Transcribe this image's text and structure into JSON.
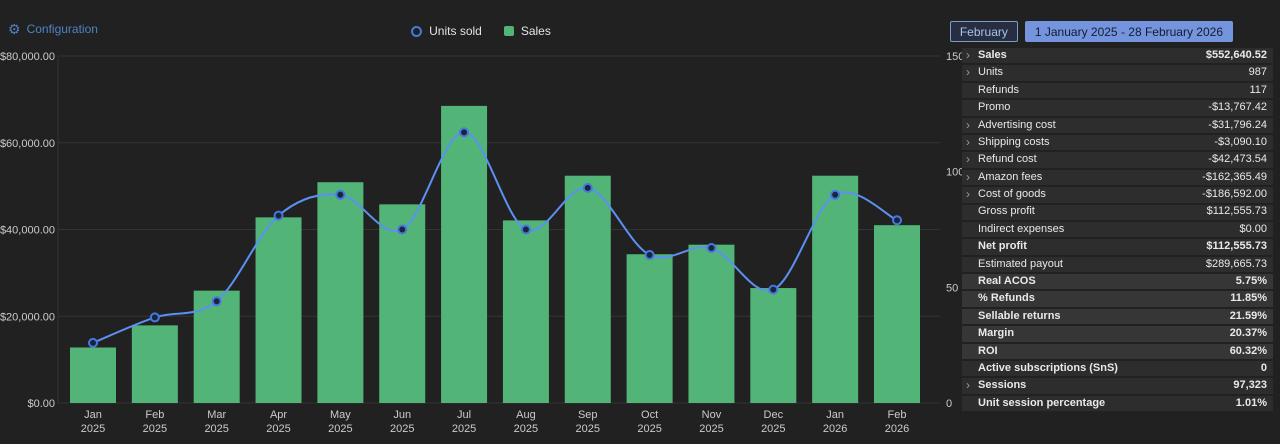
{
  "top_bar": {
    "configuration_label": "Configuration",
    "month_button": "February",
    "date_range_button": "1 January 2025 - 28 February 2026"
  },
  "colors": {
    "bar_green": "#52b477",
    "line_blue": "#5b91f2",
    "marker_ring_blue": "#4579e0",
    "accent_blue": "#4d82c4",
    "range_button_fill": "#7494de"
  },
  "chart_data": {
    "type": "bar-line-combo",
    "categories": [
      {
        "month": "Jan",
        "year": "2025"
      },
      {
        "month": "Feb",
        "year": "2025"
      },
      {
        "month": "Mar",
        "year": "2025"
      },
      {
        "month": "Apr",
        "year": "2025"
      },
      {
        "month": "May",
        "year": "2025"
      },
      {
        "month": "Jun",
        "year": "2025"
      },
      {
        "month": "Jul",
        "year": "2025"
      },
      {
        "month": "Aug",
        "year": "2025"
      },
      {
        "month": "Sep",
        "year": "2025"
      },
      {
        "month": "Oct",
        "year": "2025"
      },
      {
        "month": "Nov",
        "year": "2025"
      },
      {
        "month": "Dec",
        "year": "2025"
      },
      {
        "month": "Jan",
        "year": "2026"
      },
      {
        "month": "Feb",
        "year": "2026"
      }
    ],
    "series": [
      {
        "name": "Sales",
        "type": "bar",
        "axis": "left",
        "color": "#52b477",
        "values": [
          12800,
          17900,
          25900,
          42800,
          50900,
          45800,
          68500,
          42100,
          52400,
          34300,
          36500,
          26500,
          52400,
          41000
        ]
      },
      {
        "name": "Units sold",
        "type": "line",
        "axis": "right",
        "color": "#5b91f2",
        "marker_stroke": "#4579e0",
        "marker_fill": "#1b2438",
        "values": [
          26,
          37,
          44,
          81,
          90,
          75,
          117,
          75,
          93,
          64,
          67,
          49,
          90,
          79
        ]
      }
    ],
    "left_axis": {
      "min": 0,
      "max": 80000,
      "ticks": [
        {
          "label": "$0.00",
          "value": 0
        },
        {
          "label": "$20,000.00",
          "value": 20000
        },
        {
          "label": "$40,000.00",
          "value": 40000
        },
        {
          "label": "$60,000.00",
          "value": 60000
        },
        {
          "label": "$80,000.00",
          "value": 80000
        }
      ]
    },
    "right_axis": {
      "min": 0,
      "max": 150,
      "ticks": [
        {
          "label": "0",
          "value": 0
        },
        {
          "label": "50",
          "value": 50
        },
        {
          "label": "100",
          "value": 100
        },
        {
          "label": "150",
          "value": 150
        }
      ]
    },
    "grid": true,
    "legend_position": "top-center"
  },
  "metrics_panel": {
    "rows": [
      {
        "label": "Sales",
        "value": "$552,640.52",
        "bold": true,
        "chevron": true
      },
      {
        "label": "Units",
        "value": "987",
        "chevron": true
      },
      {
        "label": "Refunds",
        "value": "117"
      },
      {
        "label": "Promo",
        "value": "-$13,767.42"
      },
      {
        "label": "Advertising cost",
        "value": "-$31,796.24",
        "chevron": true
      },
      {
        "label": "Shipping costs",
        "value": "-$3,090.10",
        "chevron": true
      },
      {
        "label": "Refund cost",
        "value": "-$42,473.54",
        "chevron": true
      },
      {
        "label": "Amazon fees",
        "value": "-$162,365.49",
        "chevron": true
      },
      {
        "label": "Cost of goods",
        "value": "-$186,592.00",
        "chevron": true
      },
      {
        "label": "Gross profit",
        "value": "$112,555.73"
      },
      {
        "label": "Indirect expenses",
        "value": "$0.00"
      },
      {
        "label": "Net profit",
        "value": "$112,555.73",
        "bold": true
      },
      {
        "label": "Estimated payout",
        "value": "$289,665.73"
      },
      {
        "label": "Real ACOS",
        "value": "5.75%",
        "bold": true,
        "section": "ratio"
      },
      {
        "label": "% Refunds",
        "value": "11.85%",
        "bold": true,
        "section": "ratio"
      },
      {
        "label": "Sellable returns",
        "value": "21.59%",
        "bold": true,
        "section": "ratio"
      },
      {
        "label": "Margin",
        "value": "20.37%",
        "bold": true,
        "section": "ratio"
      },
      {
        "label": "ROI",
        "value": "60.32%",
        "bold": true,
        "section": "ratio"
      },
      {
        "label": "Active subscriptions (SnS)",
        "value": "0",
        "bold": true
      },
      {
        "label": "Sessions",
        "value": "97,323",
        "bold": true,
        "chevron": true
      },
      {
        "label": "Unit session percentage",
        "value": "1.01%",
        "bold": true
      }
    ]
  }
}
